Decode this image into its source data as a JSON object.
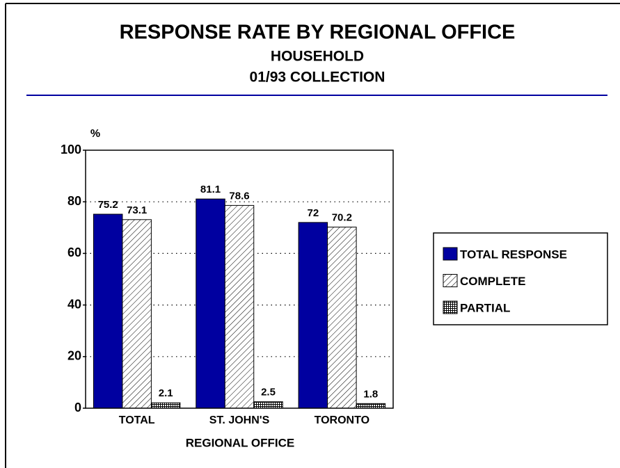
{
  "chart_data": {
    "type": "bar",
    "title": "RESPONSE RATE BY REGIONAL OFFICE",
    "subtitle": [
      "HOUSEHOLD",
      "01/93 COLLECTION"
    ],
    "y_label": "%",
    "x_label": "REGIONAL OFFICE",
    "categories": [
      "TOTAL",
      "ST. JOHN'S",
      "TORONTO"
    ],
    "series": [
      {
        "name": "TOTAL RESPONSE",
        "color": "#0000a0",
        "pattern": "solid",
        "values": [
          75.2,
          81.1,
          72
        ]
      },
      {
        "name": "COMPLETE",
        "color": "#000000",
        "pattern": "hatch",
        "values": [
          73.1,
          78.6,
          70.2
        ]
      },
      {
        "name": "PARTIAL",
        "color": "#000000",
        "pattern": "crosshatch",
        "values": [
          2.1,
          2.5,
          1.8
        ]
      }
    ],
    "ylim": [
      0,
      100
    ],
    "yticks": [
      0,
      20,
      40,
      60,
      80,
      100
    ],
    "grid": true,
    "legend": "right"
  }
}
